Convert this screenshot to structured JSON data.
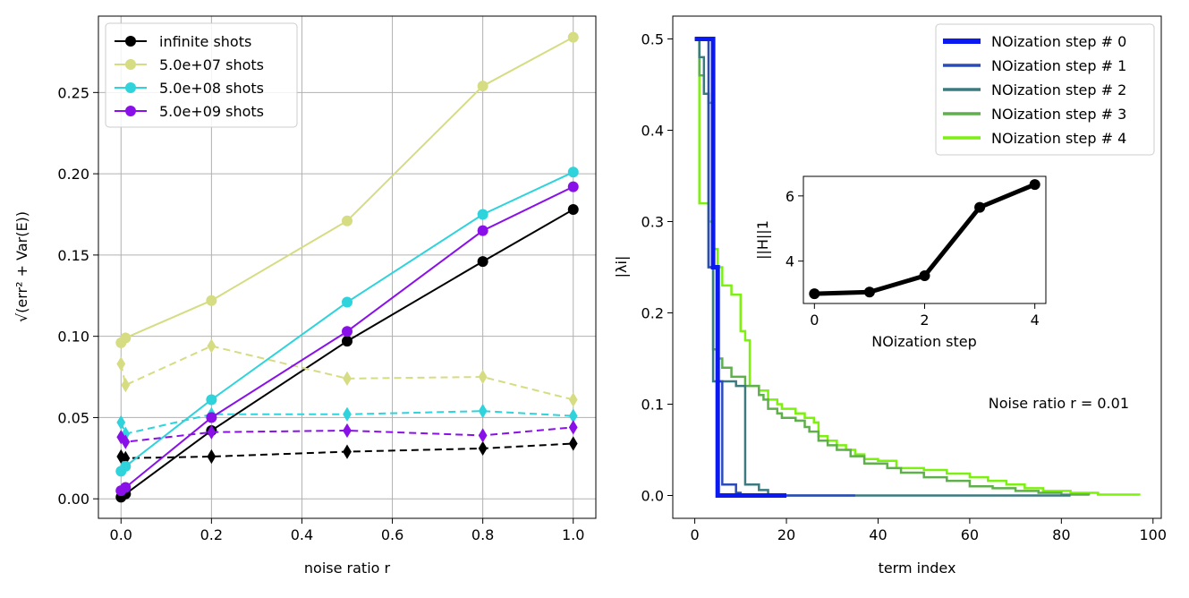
{
  "chart_data": [
    {
      "type": "line",
      "xlabel": "noise ratio r",
      "ylabel": "√(err² + Var(E))",
      "xlim": [
        -0.05,
        1.05
      ],
      "ylim": [
        -0.012,
        0.297
      ],
      "xticks": [
        0.0,
        0.2,
        0.4,
        0.6,
        0.8,
        1.0
      ],
      "xtick_labels": [
        "0.0",
        "0.2",
        "0.4",
        "0.6",
        "0.8",
        "1.0"
      ],
      "yticks": [
        0.0,
        0.05,
        0.1,
        0.15,
        0.2,
        0.25
      ],
      "ytick_labels": [
        "0.00",
        "0.05",
        "0.10",
        "0.15",
        "0.20",
        "0.25"
      ],
      "grid": true,
      "legend_placement": "top-left",
      "x": [
        0.0,
        0.01,
        0.2,
        0.5,
        0.8,
        1.0
      ],
      "series": [
        {
          "name": "infinite shots",
          "color": "#000000",
          "values": [
            0.001,
            0.003,
            0.042,
            0.097,
            0.146,
            0.178
          ],
          "dashed_values": [
            0.026,
            0.025,
            0.026,
            0.029,
            0.031,
            0.034
          ]
        },
        {
          "name": "5.0e+07 shots",
          "color": "#d6dc82",
          "values": [
            0.096,
            0.099,
            0.122,
            0.171,
            0.254,
            0.284
          ],
          "dashed_values": [
            0.083,
            0.07,
            0.094,
            0.074,
            0.075,
            0.061
          ]
        },
        {
          "name": "5.0e+08 shots",
          "color": "#2ed3dc",
          "values": [
            0.017,
            0.02,
            0.061,
            0.121,
            0.175,
            0.201
          ],
          "dashed_values": [
            0.047,
            0.04,
            0.052,
            0.052,
            0.054,
            0.051
          ]
        },
        {
          "name": "5.0e+09 shots",
          "color": "#8a10ea",
          "values": [
            0.005,
            0.007,
            0.05,
            0.103,
            0.165,
            0.192
          ],
          "dashed_values": [
            0.038,
            0.035,
            0.041,
            0.042,
            0.039,
            0.044
          ]
        }
      ]
    },
    {
      "type": "line",
      "xlabel": "term index",
      "ylabel": "|λi|",
      "xlim": [
        -4.8,
        101.8
      ],
      "ylim": [
        -0.025,
        0.525
      ],
      "xticks": [
        0,
        20,
        40,
        60,
        80,
        100
      ],
      "xtick_labels": [
        "0",
        "20",
        "40",
        "60",
        "80",
        "100"
      ],
      "yticks": [
        0.0,
        0.1,
        0.2,
        0.3,
        0.4,
        0.5
      ],
      "ytick_labels": [
        "0.0",
        "0.1",
        "0.2",
        "0.3",
        "0.4",
        "0.5"
      ],
      "grid": false,
      "legend_placement": "top-right",
      "annotation": "Noise ratio r = 0.01",
      "series": [
        {
          "name": "NOization step # 0",
          "color": "#0a1af0",
          "width": 5,
          "steps": [
            [
              0,
              0.5
            ],
            [
              4,
              0.5
            ],
            [
              4,
              0.25
            ],
            [
              5,
              0.25
            ],
            [
              5,
              0.0
            ],
            [
              20,
              0.0
            ]
          ]
        },
        {
          "name": "NOization step # 1",
          "color": "#2a4bb8",
          "width": 2.5,
          "steps": [
            [
              0,
              0.5
            ],
            [
              3,
              0.5
            ],
            [
              3,
              0.25
            ],
            [
              5,
              0.25
            ],
            [
              5,
              0.125
            ],
            [
              6,
              0.125
            ],
            [
              6,
              0.012
            ],
            [
              9,
              0.012
            ],
            [
              9,
              0.003
            ],
            [
              10,
              0.003
            ],
            [
              10,
              0.0
            ],
            [
              35,
              0.0
            ]
          ]
        },
        {
          "name": "NOization step # 2",
          "color": "#3b7b80",
          "width": 2.5,
          "steps": [
            [
              0,
              0.5
            ],
            [
              1,
              0.5
            ],
            [
              1,
              0.48
            ],
            [
              2,
              0.48
            ],
            [
              2,
              0.44
            ],
            [
              3,
              0.44
            ],
            [
              3,
              0.25
            ],
            [
              4,
              0.25
            ],
            [
              4,
              0.125
            ],
            [
              9,
              0.125
            ],
            [
              9,
              0.12
            ],
            [
              11,
              0.12
            ],
            [
              11,
              0.012
            ],
            [
              14,
              0.012
            ],
            [
              14,
              0.006
            ],
            [
              16,
              0.006
            ],
            [
              16,
              0.001
            ],
            [
              18,
              0.001
            ],
            [
              18,
              0.0
            ],
            [
              82,
              0.0
            ]
          ]
        },
        {
          "name": "NOization step # 3",
          "color": "#5faf4c",
          "width": 2.5,
          "steps": [
            [
              0,
              0.5
            ],
            [
              1,
              0.46
            ],
            [
              2,
              0.44
            ],
            [
              3,
              0.43
            ],
            [
              4,
              0.25
            ],
            [
              4,
              0.16
            ],
            [
              5,
              0.15
            ],
            [
              6,
              0.14
            ],
            [
              7,
              0.14
            ],
            [
              8,
              0.13
            ],
            [
              10,
              0.13
            ],
            [
              11,
              0.12
            ],
            [
              12,
              0.12
            ],
            [
              14,
              0.11
            ],
            [
              15,
              0.105
            ],
            [
              16,
              0.095
            ],
            [
              18,
              0.09
            ],
            [
              19,
              0.085
            ],
            [
              22,
              0.082
            ],
            [
              24,
              0.075
            ],
            [
              25,
              0.07
            ],
            [
              27,
              0.06
            ],
            [
              29,
              0.055
            ],
            [
              31,
              0.05
            ],
            [
              34,
              0.043
            ],
            [
              37,
              0.035
            ],
            [
              42,
              0.03
            ],
            [
              45,
              0.025
            ],
            [
              50,
              0.02
            ],
            [
              55,
              0.016
            ],
            [
              60,
              0.01
            ],
            [
              65,
              0.008
            ],
            [
              70,
              0.005
            ],
            [
              75,
              0.003
            ],
            [
              80,
              0.001
            ],
            [
              86,
              0.0
            ]
          ]
        },
        {
          "name": "NOization step # 4",
          "color": "#7cf00e",
          "width": 2.5,
          "steps": [
            [
              0,
              0.5
            ],
            [
              1,
              0.32
            ],
            [
              2,
              0.32
            ],
            [
              3,
              0.3
            ],
            [
              4,
              0.27
            ],
            [
              5,
              0.27
            ],
            [
              5,
              0.25
            ],
            [
              6,
              0.23
            ],
            [
              7,
              0.23
            ],
            [
              8,
              0.22
            ],
            [
              9,
              0.22
            ],
            [
              10,
              0.18
            ],
            [
              11,
              0.17
            ],
            [
              12,
              0.12
            ],
            [
              14,
              0.115
            ],
            [
              16,
              0.105
            ],
            [
              18,
              0.1
            ],
            [
              19,
              0.095
            ],
            [
              22,
              0.09
            ],
            [
              24,
              0.085
            ],
            [
              26,
              0.08
            ],
            [
              27,
              0.065
            ],
            [
              29,
              0.06
            ],
            [
              31,
              0.055
            ],
            [
              33,
              0.05
            ],
            [
              35,
              0.045
            ],
            [
              37,
              0.04
            ],
            [
              40,
              0.038
            ],
            [
              44,
              0.03
            ],
            [
              50,
              0.028
            ],
            [
              55,
              0.024
            ],
            [
              60,
              0.02
            ],
            [
              64,
              0.016
            ],
            [
              68,
              0.012
            ],
            [
              72,
              0.008
            ],
            [
              76,
              0.005
            ],
            [
              82,
              0.003
            ],
            [
              88,
              0.001
            ],
            [
              97,
              0.0
            ]
          ]
        }
      ],
      "inset": {
        "type": "line",
        "xlabel": "NOization step",
        "ylabel": "||H||1",
        "xlim": [
          -0.2,
          4.2
        ],
        "ylim": [
          2.7,
          6.6
        ],
        "xticks": [
          0,
          2,
          4
        ],
        "xtick_labels": [
          "0",
          "2",
          "4"
        ],
        "yticks": [
          4,
          6
        ],
        "ytick_labels": [
          "4",
          "6"
        ],
        "x": [
          0,
          1,
          2,
          3,
          4
        ],
        "values": [
          3.0,
          3.05,
          3.55,
          5.65,
          6.35
        ],
        "color": "#000000"
      }
    }
  ]
}
